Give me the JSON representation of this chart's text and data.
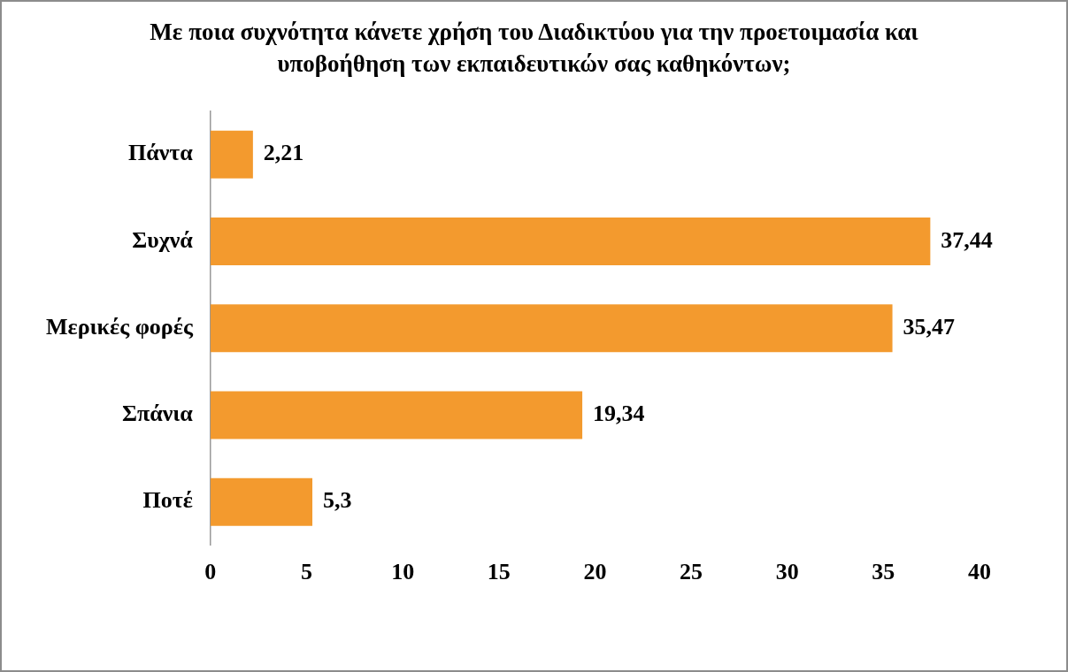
{
  "chart_data": {
    "type": "bar",
    "orientation": "horizontal",
    "title": "Με ποια συχνότητα κάνετε χρήση του Διαδικτύου για την προετοιμασία και υποβοήθηση των εκπαιδευτικών σας καθηκόντων;",
    "categories": [
      "Πάντα",
      "Συχνά",
      "Μερικές φορές",
      "Σπάνια",
      "Ποτέ"
    ],
    "values": [
      2.21,
      37.44,
      35.47,
      19.34,
      5.3
    ],
    "value_labels": [
      "2,21",
      "37,44",
      "35,47",
      "19,34",
      "5,3"
    ],
    "color": "#f39a2e",
    "xlim": [
      0,
      40
    ],
    "xticks": [
      0,
      5,
      10,
      15,
      20,
      25,
      30,
      35,
      40
    ],
    "grid": false,
    "legend": false
  }
}
